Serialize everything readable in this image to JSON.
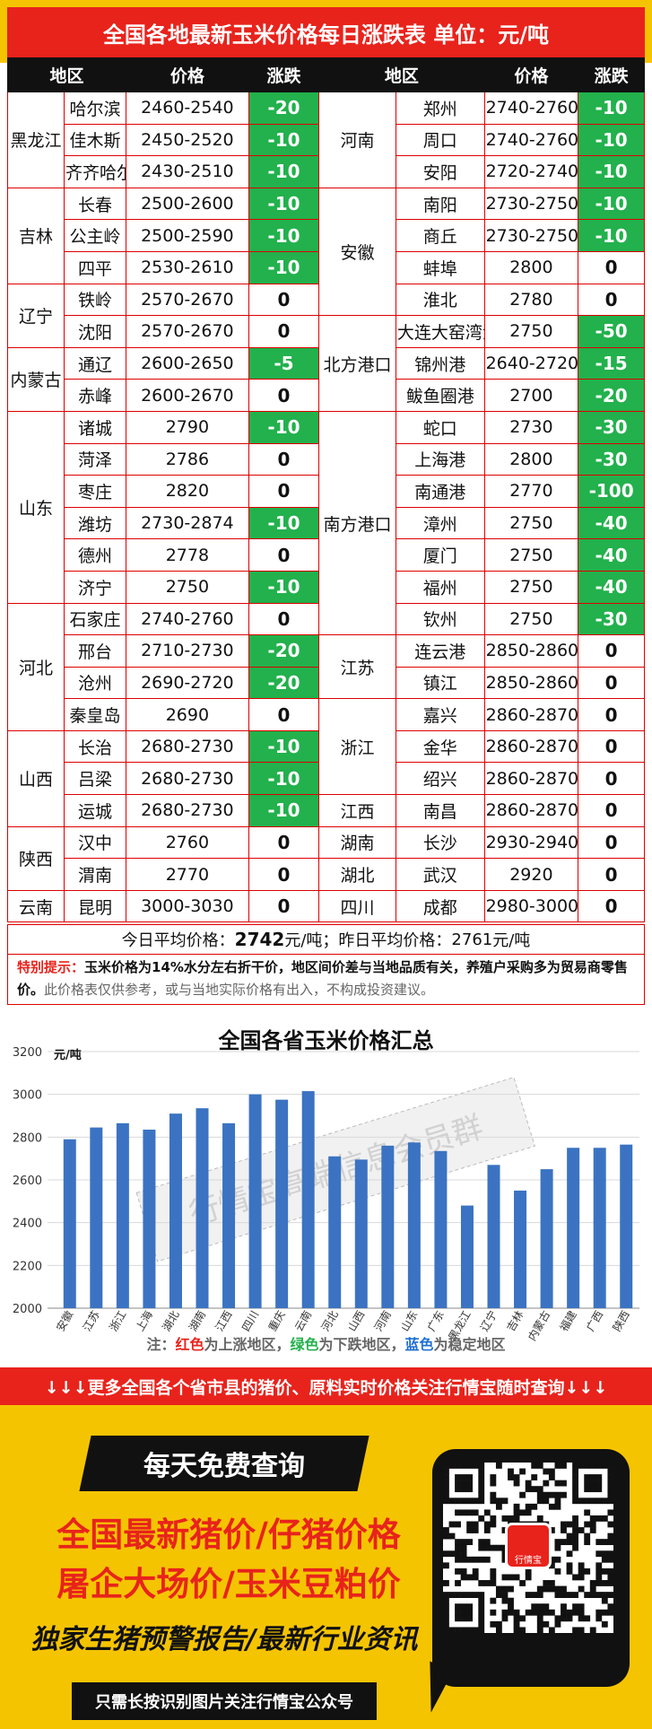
{
  "title": "全国各地最新玉米价格每日涨跌表   单位：元/吨",
  "headers": [
    "地区",
    "价格",
    "涨跌",
    "地区",
    "价格",
    "涨跌"
  ],
  "left_rows": [
    {
      "region": "黑龙江",
      "city": "哈尔滨",
      "price": "2460-2540",
      "change": "-20"
    },
    {
      "region": "",
      "city": "佳木斯",
      "price": "2450-2520",
      "change": "-10"
    },
    {
      "region": "",
      "city": "齐齐哈尔",
      "price": "2430-2510",
      "change": "-10"
    },
    {
      "region": "吉林",
      "city": "长春",
      "price": "2500-2600",
      "change": "-10"
    },
    {
      "region": "",
      "city": "公主岭",
      "price": "2500-2590",
      "change": "-10"
    },
    {
      "region": "",
      "city": "四平",
      "price": "2530-2610",
      "change": "-10"
    },
    {
      "region": "辽宁",
      "city": "铁岭",
      "price": "2570-2670",
      "change": "0"
    },
    {
      "region": "",
      "city": "沈阳",
      "price": "2570-2670",
      "change": "0"
    },
    {
      "region": "内蒙古",
      "city": "通辽",
      "price": "2600-2650",
      "change": "-5"
    },
    {
      "region": "",
      "city": "赤峰",
      "price": "2600-2670",
      "change": "0"
    },
    {
      "region": "山东",
      "city": "诸城",
      "price": "2790",
      "change": "-10"
    },
    {
      "region": "",
      "city": "菏泽",
      "price": "2786",
      "change": "0"
    },
    {
      "region": "",
      "city": "枣庄",
      "price": "2820",
      "change": "0"
    },
    {
      "region": "",
      "city": "潍坊",
      "price": "2730-2874",
      "change": "-10"
    },
    {
      "region": "",
      "city": "德州",
      "price": "2778",
      "change": "0"
    },
    {
      "region": "",
      "city": "济宁",
      "price": "2750",
      "change": "-10"
    },
    {
      "region": "河北",
      "city": "石家庄",
      "price": "2740-2760",
      "change": "0"
    },
    {
      "region": "",
      "city": "邢台",
      "price": "2710-2730",
      "change": "-20"
    },
    {
      "region": "",
      "city": "沧州",
      "price": "2690-2720",
      "change": "-20"
    },
    {
      "region": "",
      "city": "秦皇岛",
      "price": "2690",
      "change": "0"
    },
    {
      "region": "山西",
      "city": "长治",
      "price": "2680-2730",
      "change": "-10"
    },
    {
      "region": "",
      "city": "吕梁",
      "price": "2680-2730",
      "change": "-10"
    },
    {
      "region": "",
      "city": "运城",
      "price": "2680-2730",
      "change": "-10"
    },
    {
      "region": "陕西",
      "city": "汉中",
      "price": "2760",
      "change": "0"
    },
    {
      "region": "",
      "city": "渭南",
      "price": "2770",
      "change": "0"
    },
    {
      "region": "云南",
      "city": "昆明",
      "price": "3000-3030",
      "change": "0"
    }
  ],
  "right_rows": [
    {
      "region": "河南",
      "city": "郑州",
      "price": "2740-2760",
      "change": "-10"
    },
    {
      "region": "",
      "city": "周口",
      "price": "2740-2760",
      "change": "-10"
    },
    {
      "region": "",
      "city": "安阳",
      "price": "2720-2740",
      "change": "-10"
    },
    {
      "region": "安徽",
      "city": "南阳",
      "price": "2730-2750",
      "change": "-10"
    },
    {
      "region": "",
      "city": "商丘",
      "price": "2730-2750",
      "change": "-10"
    },
    {
      "region": "",
      "city": "蚌埠",
      "price": "2800",
      "change": "0"
    },
    {
      "region": "",
      "city": "淮北",
      "price": "2780",
      "change": "0"
    },
    {
      "region": "北方港口",
      "city": "大连大窑湾港",
      "price": "2750",
      "change": "-50"
    },
    {
      "region": "",
      "city": "锦州港",
      "price": "2640-2720",
      "change": "-15"
    },
    {
      "region": "",
      "city": "鲅鱼圈港",
      "price": "2700",
      "change": "-20"
    },
    {
      "region": "南方港口",
      "city": "蛇口",
      "price": "2730",
      "change": "-30"
    },
    {
      "region": "",
      "city": "上海港",
      "price": "2800",
      "change": "-30"
    },
    {
      "region": "",
      "city": "南通港",
      "price": "2770",
      "change": "-100"
    },
    {
      "region": "",
      "city": "漳州",
      "price": "2750",
      "change": "-40"
    },
    {
      "region": "",
      "city": "厦门",
      "price": "2750",
      "change": "-40"
    },
    {
      "region": "",
      "city": "福州",
      "price": "2750",
      "change": "-40"
    },
    {
      "region": "",
      "city": "钦州",
      "price": "2750",
      "change": "-30"
    },
    {
      "region": "江苏",
      "city": "连云港",
      "price": "2850-2860",
      "change": "0"
    },
    {
      "region": "",
      "city": "镇江",
      "price": "2850-2860",
      "change": "0"
    },
    {
      "region": "浙江",
      "city": "嘉兴",
      "price": "2860-2870",
      "change": "0"
    },
    {
      "region": "",
      "city": "金华",
      "price": "2860-2870",
      "change": "0"
    },
    {
      "region": "",
      "city": "绍兴",
      "price": "2860-2870",
      "change": "0"
    },
    {
      "region": "江西",
      "city": "南昌",
      "price": "2860-2870",
      "change": "0"
    },
    {
      "region": "湖南",
      "city": "长沙",
      "price": "2930-2940",
      "change": "0"
    },
    {
      "region": "湖北",
      "city": "武汉",
      "price": "2920",
      "change": "0"
    },
    {
      "region": "四川",
      "city": "成都",
      "price": "2980-3000",
      "change": "0"
    }
  ],
  "average": {
    "today_label": "今日平均价格：",
    "today_value": "2742",
    "today_unit": "元/吨；",
    "yesterday_label": "昨日平均价格：",
    "yesterday_value": "2761",
    "yesterday_unit": "元/吨"
  },
  "notice": {
    "label": "特别提示：",
    "bold_text": "玉米价格为14%水分左右折干价，地区间价差与当地品质有关，养殖户采购多为贸易商零售价。",
    "gray_text": "此价格表仅供参考，或与当地实际价格有出入，不构成投资建议。"
  },
  "chart_unit": "元/吨",
  "chart_data": {
    "type": "bar",
    "title": "全国各省玉米价格汇总",
    "categories": [
      "安徽",
      "江苏",
      "浙江",
      "上海",
      "湖北",
      "湖南",
      "江西",
      "四川",
      "重庆",
      "云南",
      "河北",
      "山西",
      "河南",
      "山东",
      "广东",
      "黑龙江",
      "辽宁",
      "吉林",
      "内蒙古",
      "福建",
      "广西",
      "陕西"
    ],
    "values": [
      2790,
      2845,
      2865,
      2835,
      2910,
      2935,
      2865,
      3000,
      2975,
      3015,
      2710,
      2695,
      2760,
      2775,
      2735,
      2480,
      2670,
      2550,
      2650,
      2750,
      2750,
      2765
    ],
    "ylim": [
      2000,
      3200
    ],
    "yticks": [
      2000,
      2200,
      2400,
      2600,
      2800,
      3000,
      3200
    ],
    "bar_color": "#3b73c2",
    "grid": true
  },
  "watermark": "行情宝高端信息会员群",
  "chart_note": {
    "prefix": "注：",
    "red": "红色",
    "t1": "为上涨地区，",
    "green": "绿色",
    "t2": "为下跌地区，",
    "blue": "蓝色",
    "t3": "为稳定地区"
  },
  "banner": "↓↓↓更多全国各个省市县的猪价、原料实时价格关注行情宝随时查询↓↓↓",
  "promo": {
    "daily": "每天免费查询",
    "line1": "全国最新猪价/仔猪价格",
    "line2": "屠企大场价/玉米豆粕价",
    "line3": "独家生猪预警报告/最新行业资讯",
    "scan": "只需长按识别图片关注行情宝公众号",
    "logo_text": "行情宝"
  },
  "colors": {
    "yellow": "#f5c400",
    "red": "#e8231c",
    "green": "#22b14c",
    "black": "#111111"
  }
}
